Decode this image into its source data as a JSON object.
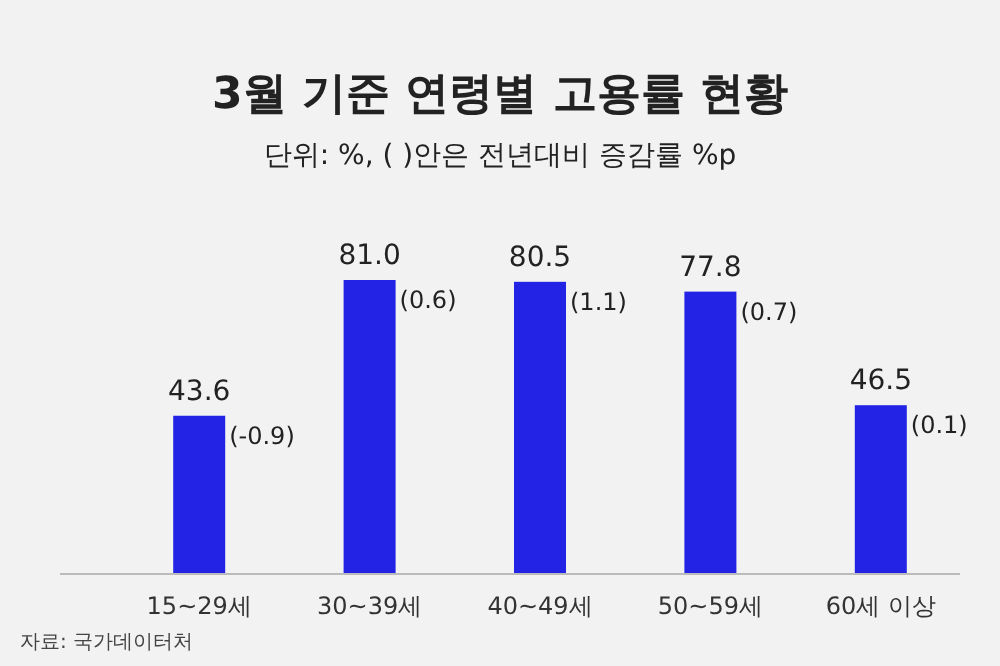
{
  "chart_data": {
    "type": "bar",
    "title": "3월 기준 연령별 고용률 현황",
    "subtitle": "단위: %, ( )안은 전년대비 증감률 %p",
    "categories": [
      "15~29세",
      "30~39세",
      "40~49세",
      "50~59세",
      "60세 이상"
    ],
    "values": [
      43.6,
      81.0,
      80.5,
      77.8,
      46.5
    ],
    "color": "#2323e6",
    "value_labels": [
      "43.6",
      "81.0",
      "80.5",
      "77.8",
      "46.5"
    ],
    "annotations": [
      {
        "text": "(-0.9)",
        "x": "15~29세",
        "y": 43.6
      },
      {
        "text": "(0.6)",
        "x": "30~39세",
        "y": 81.0
      },
      {
        "text": "(1.1)",
        "x": "40~49세",
        "y": 80.5
      },
      {
        "text": "(0.7)",
        "x": "50~59세",
        "y": 77.8
      },
      {
        "text": "(0.1)",
        "x": "60세 이상",
        "y": 46.5
      },
      "자료: 국가데이터처"
    ]
  }
}
